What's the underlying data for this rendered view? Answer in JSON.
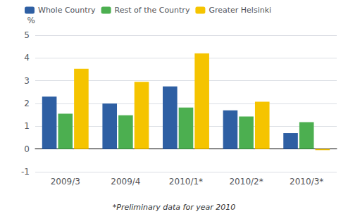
{
  "chart_data": {
    "type": "bar",
    "categories": [
      "2009/3",
      "2009/4",
      "2010/1*",
      "2010/2*",
      "2010/3*"
    ],
    "series": [
      {
        "name": "Whole Country",
        "color": "#2E5FA3",
        "values": [
          2.3,
          2.0,
          2.75,
          1.7,
          0.7
        ]
      },
      {
        "name": "Rest of the Country",
        "color": "#4CAF50",
        "values": [
          1.55,
          1.48,
          1.82,
          1.43,
          1.18
        ]
      },
      {
        "name": "Greater Helsinki",
        "color": "#F5C400",
        "values": [
          3.52,
          2.95,
          4.2,
          2.08,
          -0.05
        ]
      }
    ],
    "ylabel": "%",
    "annotations": [
      "*Preliminary data for year 2010"
    ],
    "ylim": [
      -1,
      5
    ],
    "yticks": [
      -1,
      0,
      1,
      2,
      3,
      4,
      5
    ],
    "grid": true,
    "legend": "upper left"
  }
}
